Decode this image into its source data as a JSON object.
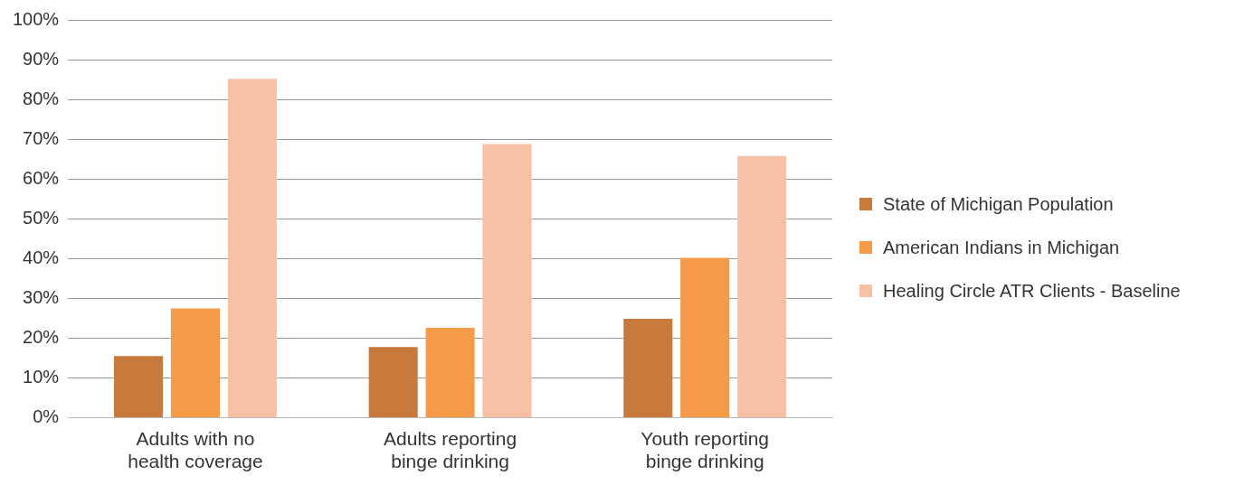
{
  "chart_data": {
    "type": "bar",
    "categories": [
      "Adults with no health coverage",
      "Adults reporting binge drinking",
      "Youth reporting binge drinking"
    ],
    "series": [
      {
        "name": "State of Michigan Population",
        "color": "#c87a3c",
        "values": [
          15.5,
          17.8,
          24.9
        ]
      },
      {
        "name": "American Indians in Michigan",
        "color": "#f59a48",
        "values": [
          27.5,
          22.6,
          40.2
        ]
      },
      {
        "name": "Healing Circle ATR Clients - Baseline",
        "color": "#f8c1a6",
        "values": [
          85.2,
          68.8,
          65.8
        ]
      }
    ],
    "ylim": [
      0,
      100
    ],
    "yticks": [
      {
        "value": 0,
        "label": "0%"
      },
      {
        "value": 10,
        "label": "10%"
      },
      {
        "value": 20,
        "label": "20%"
      },
      {
        "value": 30,
        "label": "30%"
      },
      {
        "value": 40,
        "label": "40%"
      },
      {
        "value": 50,
        "label": "50%"
      },
      {
        "value": 60,
        "label": "60%"
      },
      {
        "value": 70,
        "label": "70%"
      },
      {
        "value": 80,
        "label": "80%"
      },
      {
        "value": 90,
        "label": "90%"
      },
      {
        "value": 100,
        "label": "100%"
      }
    ],
    "grid": "y",
    "legend": "right"
  }
}
